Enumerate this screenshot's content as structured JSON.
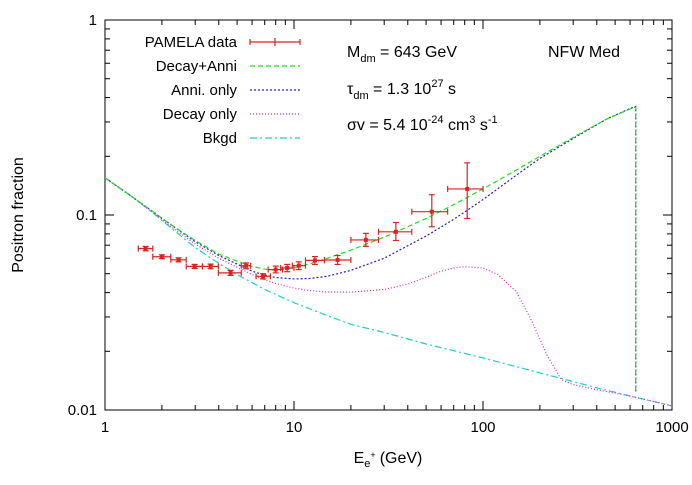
{
  "chart_data": {
    "type": "line",
    "xlabel": {
      "base": "E",
      "sub": "e",
      "sup": "+",
      "unit": "(GeV)"
    },
    "ylabel": "Positron fraction",
    "x_scale": "log",
    "y_scale": "log",
    "xlim": [
      1,
      1000
    ],
    "ylim": [
      0.01,
      1
    ],
    "x_ticks": [
      {
        "value": 1,
        "label": "1"
      },
      {
        "value": 10,
        "label": "10"
      },
      {
        "value": 100,
        "label": "100"
      },
      {
        "value": 1000,
        "label": "1000"
      }
    ],
    "y_ticks": [
      {
        "value": 0.01,
        "label": "0.01"
      },
      {
        "value": 0.1,
        "label": "0.1"
      },
      {
        "value": 1,
        "label": "1"
      }
    ],
    "grid": false,
    "legend_position": "top-left",
    "annotations": {
      "mass": {
        "sym": "M",
        "sub": "dm",
        "text": " = 643 GeV"
      },
      "tau": {
        "sym": "τ",
        "sub": "dm",
        "text": " = 1.3 10",
        "sup": "27",
        "tail": " s"
      },
      "sigma": {
        "text": "σv = 5.4 10",
        "sup1": "-24",
        "mid": " cm",
        "sup2": "3",
        "mid2": " s",
        "sup3": "-1"
      },
      "profile": "NFW Med"
    },
    "series": [
      {
        "name": "PAMELA data",
        "kind": "errorbars",
        "color": "#dd2222",
        "points": [
          {
            "x": 1.64,
            "y": 0.0673,
            "xlo": 1.5,
            "xhi": 1.79,
            "ylo": 0.0655,
            "yhi": 0.069
          },
          {
            "x": 2.0,
            "y": 0.0611,
            "xlo": 1.79,
            "xhi": 2.23,
            "ylo": 0.0597,
            "yhi": 0.0625
          },
          {
            "x": 2.45,
            "y": 0.0589,
            "xlo": 2.23,
            "xhi": 2.69,
            "ylo": 0.0575,
            "yhi": 0.0603
          },
          {
            "x": 2.98,
            "y": 0.0545,
            "xlo": 2.69,
            "xhi": 3.28,
            "ylo": 0.0532,
            "yhi": 0.0558
          },
          {
            "x": 3.62,
            "y": 0.0545,
            "xlo": 3.28,
            "xhi": 3.98,
            "ylo": 0.053,
            "yhi": 0.056
          },
          {
            "x": 4.62,
            "y": 0.0505,
            "xlo": 3.98,
            "xhi": 5.26,
            "ylo": 0.049,
            "yhi": 0.052
          },
          {
            "x": 5.58,
            "y": 0.0549,
            "xlo": 5.26,
            "xhi": 5.9,
            "ylo": 0.053,
            "yhi": 0.0568
          },
          {
            "x": 6.86,
            "y": 0.0485,
            "xlo": 6.3,
            "xhi": 7.5,
            "ylo": 0.047,
            "yhi": 0.05
          },
          {
            "x": 8.0,
            "y": 0.0525,
            "xlo": 7.3,
            "xhi": 8.7,
            "ylo": 0.0505,
            "yhi": 0.0547
          },
          {
            "x": 9.2,
            "y": 0.0535,
            "xlo": 8.5,
            "xhi": 10.0,
            "ylo": 0.0512,
            "yhi": 0.0558
          },
          {
            "x": 10.6,
            "y": 0.055,
            "xlo": 9.8,
            "xhi": 11.5,
            "ylo": 0.0525,
            "yhi": 0.0575
          },
          {
            "x": 12.9,
            "y": 0.0585,
            "xlo": 11.5,
            "xhi": 14.5,
            "ylo": 0.0558,
            "yhi": 0.0612
          },
          {
            "x": 17.0,
            "y": 0.0588,
            "xlo": 14.5,
            "xhi": 20.0,
            "ylo": 0.0558,
            "yhi": 0.062
          },
          {
            "x": 24.0,
            "y": 0.0745,
            "xlo": 20.0,
            "xhi": 28.0,
            "ylo": 0.069,
            "yhi": 0.0805
          },
          {
            "x": 34.6,
            "y": 0.082,
            "xlo": 28.0,
            "xhi": 42.0,
            "ylo": 0.074,
            "yhi": 0.0915
          },
          {
            "x": 53.6,
            "y": 0.104,
            "xlo": 42.0,
            "xhi": 65.0,
            "ylo": 0.087,
            "yhi": 0.127
          },
          {
            "x": 82.5,
            "y": 0.136,
            "xlo": 65.0,
            "xhi": 100.0,
            "ylo": 0.096,
            "yhi": 0.185
          }
        ]
      },
      {
        "name": "Decay+Anni",
        "kind": "line",
        "color": "#22dd22",
        "dash": "5,3",
        "x": [
          1,
          1.3,
          1.7,
          2.2,
          3,
          4,
          5,
          6,
          7,
          8,
          10,
          12,
          15,
          20,
          30,
          50,
          70,
          100,
          150,
          200,
          300,
          450,
          600,
          643,
          643
        ],
        "y": [
          0.155,
          0.13,
          0.108,
          0.09,
          0.074,
          0.063,
          0.058,
          0.0545,
          0.0528,
          0.0522,
          0.0535,
          0.056,
          0.06,
          0.066,
          0.077,
          0.096,
          0.113,
          0.136,
          0.17,
          0.2,
          0.25,
          0.31,
          0.35,
          0.357,
          0.0122
        ]
      },
      {
        "name": "Anni. only",
        "kind": "line",
        "color": "#2222bb",
        "dash": "2,2",
        "x": [
          1,
          1.3,
          1.7,
          2.2,
          3,
          4,
          5,
          6,
          7,
          8,
          10,
          12,
          15,
          20,
          30,
          50,
          70,
          100,
          150,
          200,
          300,
          450,
          600,
          643,
          643
        ],
        "y": [
          0.155,
          0.13,
          0.108,
          0.09,
          0.073,
          0.062,
          0.056,
          0.0515,
          0.0492,
          0.0478,
          0.047,
          0.0472,
          0.0485,
          0.052,
          0.06,
          0.078,
          0.095,
          0.12,
          0.16,
          0.195,
          0.247,
          0.31,
          0.352,
          0.36,
          0.0122
        ]
      },
      {
        "name": "Decay only",
        "kind": "line",
        "color": "#dd22dd",
        "dash": "1,2",
        "x": [
          1,
          1.3,
          1.7,
          2.2,
          3,
          4,
          5,
          6,
          7,
          8,
          10,
          12,
          15,
          20,
          30,
          40,
          50,
          60,
          70,
          80,
          100,
          120,
          150,
          180,
          220,
          260,
          300,
          400,
          600,
          1000
        ],
        "y": [
          0.155,
          0.13,
          0.107,
          0.088,
          0.071,
          0.06,
          0.054,
          0.0495,
          0.0465,
          0.0445,
          0.0422,
          0.041,
          0.0403,
          0.0402,
          0.0415,
          0.0443,
          0.048,
          0.0515,
          0.0535,
          0.0543,
          0.0535,
          0.0495,
          0.0405,
          0.029,
          0.0188,
          0.0143,
          0.0135,
          0.0127,
          0.0118,
          0.0105
        ]
      },
      {
        "name": "Bkgd",
        "kind": "line",
        "color": "#22cccc",
        "dash": "7,3,2,3",
        "x": [
          1,
          1.3,
          1.7,
          2.2,
          3,
          4,
          5,
          7,
          10,
          15,
          20,
          30,
          50,
          100,
          200,
          400,
          600,
          1000
        ],
        "y": [
          0.155,
          0.13,
          0.107,
          0.087,
          0.068,
          0.0565,
          0.0495,
          0.0415,
          0.0355,
          0.0305,
          0.0275,
          0.025,
          0.0218,
          0.0185,
          0.0155,
          0.013,
          0.0118,
          0.0105
        ]
      }
    ]
  }
}
